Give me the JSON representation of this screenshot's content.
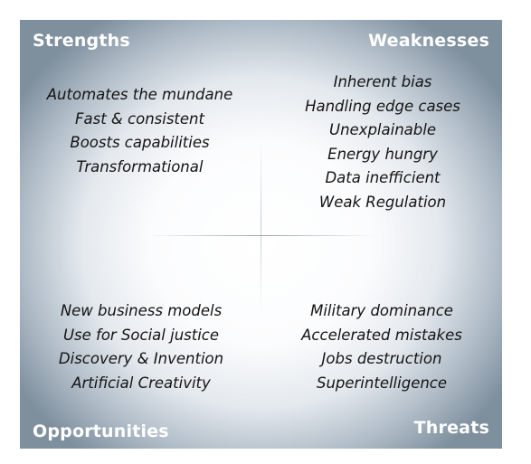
{
  "quadrants": {
    "strengths": {
      "title": "Strengths",
      "items": [
        "Automates the mundane",
        "Fast & consistent",
        "Boosts capabilities",
        "Transformational"
      ]
    },
    "weaknesses": {
      "title": "Weaknesses",
      "items": [
        "Inherent bias",
        "Handling edge cases",
        "Unexplainable",
        "Energy hungry",
        "Data inefficient",
        "Weak Regulation"
      ]
    },
    "opportunities": {
      "title": "Opportunities",
      "items": [
        "New business models",
        "Use for Social justice",
        "Discovery & Invention",
        "Artificial Creativity"
      ]
    },
    "threats": {
      "title": "Threats",
      "items": [
        "Military dominance",
        "Accelerated mistakes",
        "Jobs destruction",
        "Superintelligence"
      ]
    }
  },
  "colors": {
    "title_text": "#ffffff",
    "item_text": "#141414",
    "edge_gradient": "#7e8f9e",
    "center": "#ffffff"
  }
}
